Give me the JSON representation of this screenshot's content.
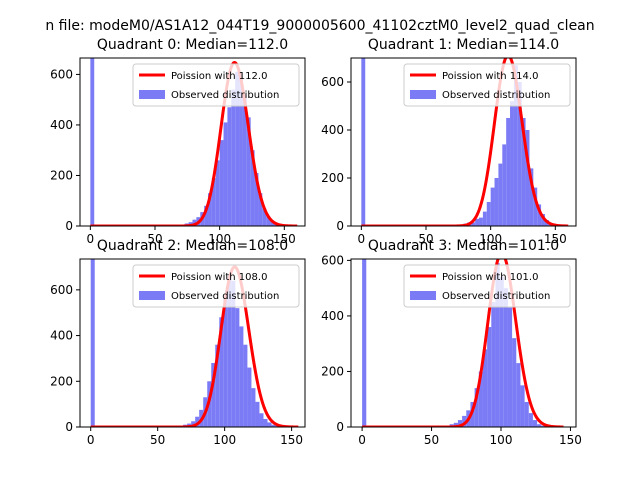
{
  "figure_title": "n file: modeM0/AS1A12_044T19_9000005600_41102cztM0_level2_quad_clean",
  "colors": {
    "hist": "#7b7bf6",
    "poisson": "#ff0000"
  },
  "chart_data": [
    {
      "type": "bar",
      "title": "Quadrant 0: Median=112.0",
      "xlim": [
        -8,
        166
      ],
      "ylim": [
        0,
        665
      ],
      "xticks": [
        0,
        50,
        100,
        150
      ],
      "yticks": [
        0,
        200,
        400,
        600
      ],
      "legend": {
        "position": "top-right",
        "entries": [
          "Poission with 112.0",
          "Observed distribution"
        ]
      },
      "poisson_mean": 112.0,
      "poisson_label": "Poission with 112.0",
      "curve_x_range": [
        0,
        160
      ],
      "hist_bins": {
        "start": 73,
        "width": 3,
        "counts": [
          10,
          15,
          25,
          35,
          55,
          80,
          130,
          190,
          260,
          340,
          410,
          470,
          540,
          610,
          600,
          520,
          430,
          300,
          210,
          130,
          70,
          40,
          20,
          10
        ]
      },
      "zero_bin": {
        "start": 0,
        "width": 3,
        "count": 665
      }
    },
    {
      "type": "bar",
      "title": "Quadrant 1: Median=114.0",
      "xlim": [
        -8,
        166
      ],
      "ylim": [
        0,
        700
      ],
      "xticks": [
        0,
        50,
        100,
        150
      ],
      "yticks": [
        0,
        200,
        400,
        600
      ],
      "legend": {
        "position": "top-right",
        "entries": [
          "Poission with 114.0",
          "Observed distribution"
        ]
      },
      "poisson_mean": 114.0,
      "poisson_label": "Poission with 114.0",
      "curve_x_range": [
        0,
        160
      ],
      "hist_bins": {
        "start": 76,
        "width": 3,
        "counts": [
          5,
          10,
          15,
          15,
          30,
          35,
          60,
          100,
          160,
          200,
          260,
          340,
          450,
          520,
          670,
          600,
          450,
          400,
          240,
          160,
          90,
          50,
          25,
          10
        ]
      },
      "zero_bin": {
        "start": 0,
        "width": 3,
        "count": 700
      }
    },
    {
      "type": "bar",
      "title": "Quadrant 2: Median=108.0",
      "xlim": [
        -8,
        160
      ],
      "ylim": [
        0,
        735
      ],
      "xticks": [
        0,
        50,
        100,
        150
      ],
      "yticks": [
        0,
        200,
        400,
        600
      ],
      "legend": {
        "position": "top-right",
        "entries": [
          "Poission with 108.0",
          "Observed distribution"
        ]
      },
      "poisson_mean": 108.0,
      "poisson_label": "Poission with 108.0",
      "curve_x_range": [
        0,
        155
      ],
      "hist_bins": {
        "start": 66,
        "width": 3,
        "counts": [
          5,
          10,
          15,
          25,
          45,
          75,
          130,
          200,
          280,
          360,
          480,
          560,
          660,
          640,
          520,
          440,
          360,
          260,
          170,
          110,
          60,
          35,
          20,
          10,
          5
        ]
      },
      "zero_bin": {
        "start": 0,
        "width": 3,
        "count": 735
      }
    },
    {
      "type": "bar",
      "title": "Quadrant 3: Median=101.0",
      "xlim": [
        -8,
        154
      ],
      "ylim": [
        0,
        605
      ],
      "xticks": [
        0,
        50,
        100,
        150
      ],
      "yticks": [
        0,
        200,
        400,
        600
      ],
      "legend": {
        "position": "top-right",
        "entries": [
          "Poission with 101.0",
          "Observed distribution"
        ]
      },
      "poisson_mean": 101.0,
      "poisson_label": "Poission with 101.0",
      "curve_x_range": [
        0,
        145
      ],
      "hist_bins": {
        "start": 60,
        "width": 3,
        "counts": [
          5,
          10,
          15,
          25,
          40,
          60,
          90,
          140,
          200,
          280,
          360,
          450,
          590,
          540,
          500,
          430,
          320,
          230,
          150,
          90,
          50,
          25,
          10,
          5
        ]
      },
      "zero_bin": {
        "start": 0,
        "width": 3,
        "count": 605
      }
    }
  ]
}
